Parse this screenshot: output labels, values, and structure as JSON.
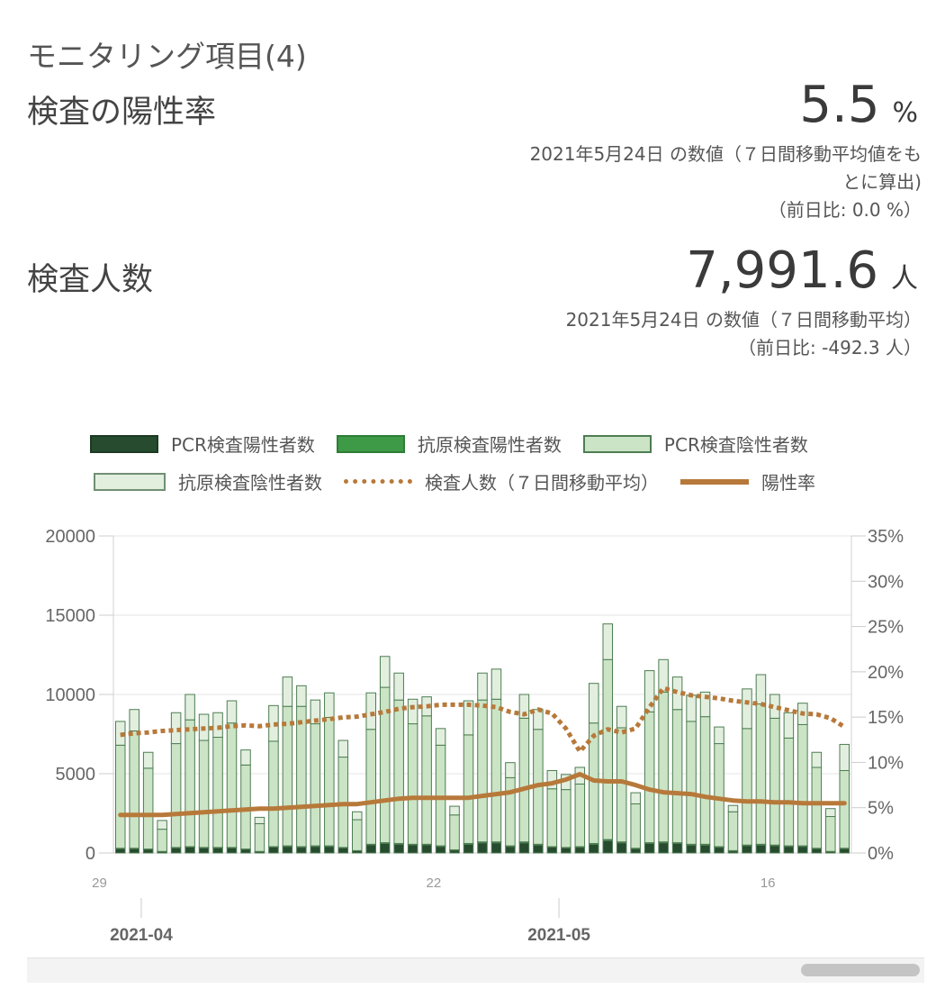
{
  "section_title": "モニタリング項目(4)",
  "positivity": {
    "label": "検査の陽性率",
    "value": "5.5",
    "unit": "%",
    "note_line1": "2021年5月24日 の数値（７日間移動平均値をも",
    "note_line2": "とに算出)",
    "note_line3": "（前日比: 0.0 %）"
  },
  "tests": {
    "label": "検査人数",
    "value": "7,991.6",
    "unit": "人",
    "note_line1": "2021年5月24日 の数値（７日間移動平均）",
    "note_line2": "（前日比: -492.3 人）"
  },
  "colors": {
    "pcr_pos": "#264b2e",
    "antigen_pos": "#3f9a47",
    "pcr_neg": "#cbe4c5",
    "antigen_neg": "#e2efdf",
    "bar_border": "#4e7d52",
    "line": "#b7793a"
  },
  "chart_data": {
    "type": "bar",
    "legend": [
      {
        "key": "pcr_pos",
        "label": "PCR検査陽性者数"
      },
      {
        "key": "antigen_pos",
        "label": "抗原検査陽性者数"
      },
      {
        "key": "pcr_neg",
        "label": "PCR検査陰性者数"
      },
      {
        "key": "antigen_neg",
        "label": "抗原検査陰性者数"
      },
      {
        "key": "tests_avg",
        "label": "検査人数（７日間移動平均）"
      },
      {
        "key": "rate",
        "label": "陽性率"
      }
    ],
    "x_start": "2021-03-30",
    "day_tick_labels": [
      {
        "date": "2021-03-29",
        "label": "29"
      },
      {
        "date": "2021-04-22",
        "label": "22"
      },
      {
        "date": "2021-05-16",
        "label": "16"
      }
    ],
    "month_labels": [
      {
        "date": "2021-04-01",
        "label": "2021-04"
      },
      {
        "date": "2021-05-01",
        "label": "2021-05"
      }
    ],
    "y_left": {
      "min": 0,
      "max": 20000,
      "ticks": [
        "0",
        "5000",
        "10000",
        "15000",
        "20000"
      ]
    },
    "y_right": {
      "min": 0,
      "max": 35,
      "ticks": [
        "0%",
        "5%",
        "10%",
        "15%",
        "20%",
        "25%",
        "30%",
        "35%"
      ]
    },
    "grid": true,
    "totals": [
      8300,
      9050,
      6350,
      2050,
      8850,
      10000,
      8750,
      8850,
      9600,
      6500,
      2250,
      9300,
      11100,
      10550,
      9650,
      10100,
      7100,
      2600,
      10100,
      12400,
      11350,
      9700,
      9850,
      7850,
      2950,
      9600,
      11350,
      11600,
      5700,
      10000,
      9050,
      5200,
      4950,
      5400,
      10700,
      14450,
      9250,
      3800,
      11500,
      12200,
      11100,
      9950,
      10150,
      7950,
      3000,
      10350,
      11250,
      10000,
      8850,
      9450,
      6350,
      2800,
      6850
    ],
    "antigen_negative": [
      1500,
      1350,
      1000,
      550,
      1950,
      1600,
      1650,
      1550,
      1400,
      950,
      400,
      2250,
      1850,
      1300,
      1500,
      1550,
      1050,
      500,
      2300,
      1950,
      1700,
      1550,
      1200,
      1050,
      550,
      2150,
      1700,
      1900,
      950,
      1500,
      1250,
      1150,
      950,
      1050,
      2500,
      2250,
      1350,
      700,
      2600,
      2050,
      2050,
      1650,
      1550,
      1050,
      400,
      2500,
      1850,
      1500,
      1600,
      1350,
      950,
      500,
      1650
    ],
    "positive": [
      300,
      300,
      250,
      100,
      350,
      400,
      350,
      350,
      350,
      250,
      100,
      400,
      450,
      400,
      450,
      450,
      350,
      150,
      550,
      650,
      600,
      550,
      550,
      450,
      200,
      600,
      700,
      700,
      450,
      700,
      550,
      400,
      350,
      400,
      600,
      850,
      700,
      300,
      650,
      700,
      650,
      550,
      550,
      400,
      150,
      500,
      550,
      500,
      450,
      450,
      300,
      100,
      300
    ],
    "antigen_positive": [
      30,
      30,
      20,
      10,
      30,
      30,
      30,
      30,
      30,
      20,
      10,
      30,
      40,
      40,
      40,
      40,
      30,
      10,
      40,
      50,
      50,
      40,
      40,
      40,
      20,
      50,
      60,
      60,
      40,
      60,
      50,
      30,
      30,
      40,
      50,
      70,
      60,
      30,
      50,
      60,
      50,
      50,
      50,
      40,
      20,
      40,
      50,
      40,
      40,
      40,
      30,
      10,
      30
    ],
    "tests_avg": [
      7450,
      7550,
      7600,
      7700,
      7750,
      7800,
      7850,
      7900,
      8000,
      8050,
      8000,
      8100,
      8150,
      8250,
      8350,
      8450,
      8550,
      8600,
      8750,
      8900,
      9100,
      9200,
      9250,
      9350,
      9350,
      9350,
      9300,
      9200,
      8900,
      8750,
      9050,
      8800,
      7850,
      6400,
      7400,
      7800,
      7600,
      7850,
      9200,
      10400,
      10150,
      9950,
      9850,
      9750,
      9600,
      9500,
      9400,
      9200,
      9000,
      8800,
      8750,
      8500,
      7950
    ],
    "rate": [
      4.2,
      4.2,
      4.2,
      4.2,
      4.3,
      4.4,
      4.5,
      4.6,
      4.7,
      4.8,
      4.9,
      4.9,
      5.0,
      5.1,
      5.2,
      5.3,
      5.4,
      5.4,
      5.6,
      5.8,
      6.0,
      6.1,
      6.1,
      6.1,
      6.1,
      6.1,
      6.3,
      6.5,
      6.7,
      7.1,
      7.5,
      7.7,
      8.1,
      8.7,
      8.0,
      7.9,
      7.9,
      7.5,
      7.0,
      6.7,
      6.6,
      6.5,
      6.2,
      6.0,
      5.8,
      5.7,
      5.7,
      5.6,
      5.6,
      5.5,
      5.5,
      5.5,
      5.5
    ]
  }
}
